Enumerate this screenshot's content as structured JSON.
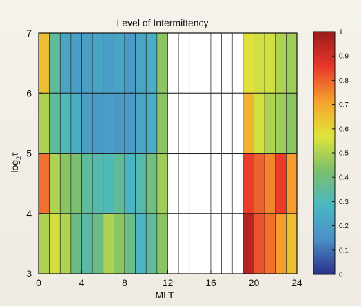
{
  "chart_data": {
    "type": "heatmap",
    "title": "Level of Intermittency",
    "xlabel": "MLT",
    "ylabel": "log",
    "ylabel_sub": "2",
    "ylabel_sym": "τ",
    "xlim": [
      0,
      24
    ],
    "ylim": [
      3,
      7
    ],
    "x_ticks": [
      0,
      4,
      8,
      12,
      16,
      20,
      24
    ],
    "y_ticks": [
      3,
      4,
      5,
      6,
      7
    ],
    "x_bins": [
      0,
      1,
      2,
      3,
      4,
      5,
      6,
      7,
      8,
      9,
      10,
      11,
      12,
      13,
      14,
      15,
      16,
      17,
      18,
      19,
      20,
      21,
      22,
      23,
      24
    ],
    "y_bins": [
      3,
      4,
      5,
      6,
      7
    ],
    "colorbar": {
      "min": 0,
      "max": 1,
      "ticks": [
        0,
        0.1,
        0.2,
        0.3,
        0.4,
        0.5,
        0.6,
        0.7,
        0.8,
        0.9,
        1
      ],
      "tick_labels": [
        "0",
        "0.1",
        "0.2",
        "0.3",
        "0.4",
        "0.5",
        "0.6",
        "0.7",
        "0.8",
        "0.9",
        "1"
      ]
    },
    "z": [
      [
        0.5,
        0.55,
        0.5,
        0.38,
        0.33,
        0.38,
        0.5,
        0.45,
        0.38,
        0.28,
        0.35,
        0.45,
        null,
        null,
        null,
        null,
        null,
        null,
        null,
        0.95,
        0.82,
        0.78,
        0.72,
        0.65
      ],
      [
        0.78,
        0.5,
        0.45,
        0.42,
        0.35,
        0.32,
        0.3,
        0.35,
        0.28,
        0.32,
        0.4,
        0.48,
        null,
        null,
        null,
        null,
        null,
        null,
        null,
        0.85,
        0.8,
        0.75,
        0.85,
        0.72
      ],
      [
        0.5,
        0.35,
        0.3,
        0.25,
        0.2,
        0.18,
        0.2,
        0.18,
        0.18,
        0.22,
        0.25,
        0.45,
        null,
        null,
        null,
        null,
        null,
        null,
        null,
        0.68,
        0.55,
        0.5,
        0.48,
        0.45
      ],
      [
        0.65,
        0.35,
        0.22,
        0.2,
        0.2,
        0.22,
        0.2,
        0.22,
        0.18,
        0.22,
        0.25,
        0.45,
        null,
        null,
        null,
        null,
        null,
        null,
        null,
        0.58,
        0.55,
        0.55,
        0.5,
        0.48
      ]
    ],
    "colors": {
      "scale": [
        "#2b2f8a",
        "#4b8fc8",
        "#4ab7c2",
        "#7cc06a",
        "#e0e43a",
        "#f6a12e",
        "#e9362b",
        "#9a1c1a"
      ],
      "empty_cell": "#ffffff",
      "cell_border": "#1a1a1a"
    }
  }
}
